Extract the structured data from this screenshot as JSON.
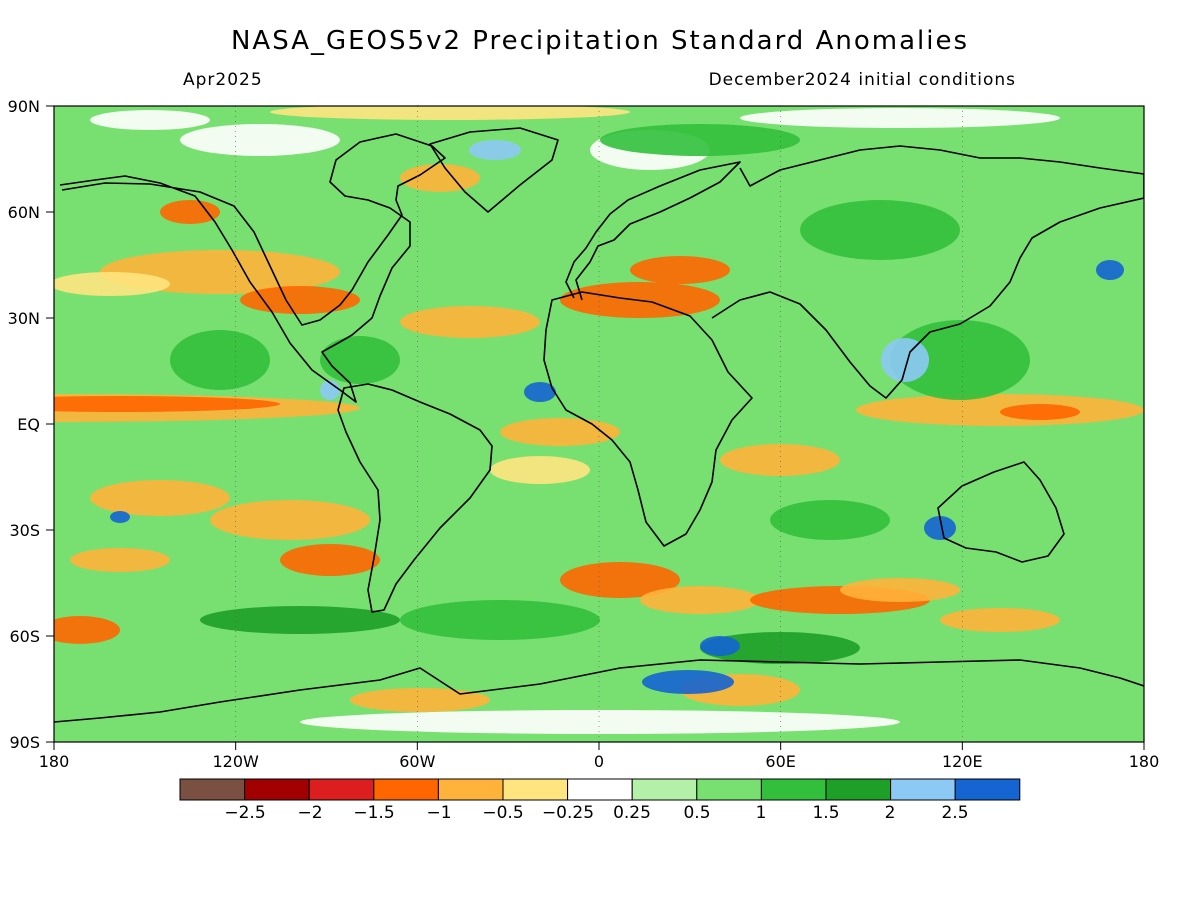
{
  "map": {
    "title": "NASA_GEOS5v2 Precipitation Standard Anomalies",
    "valid_month": "Apr2025",
    "initial_conditions": "December2024 initial conditions",
    "lat_labels": [
      "90N",
      "60N",
      "30N",
      "EQ",
      "30S",
      "60S",
      "90S"
    ],
    "lon_labels": [
      "180",
      "120W",
      "60W",
      "0",
      "60E",
      "120E",
      "180"
    ],
    "colorbar": {
      "labels": [
        "−2.5",
        "−2",
        "−1.5",
        "−1",
        "−0.5",
        "−0.25",
        "0.25",
        "0.5",
        "1",
        "1.5",
        "2",
        "2.5"
      ],
      "colors": [
        "#7a5042",
        "#a00000",
        "#dc1e1e",
        "#ff6600",
        "#ffb33a",
        "#ffe480",
        "#ffffff",
        "#b4f0a8",
        "#78e070",
        "#32c03c",
        "#1ea028",
        "#8ccaf5",
        "#1464d2"
      ]
    }
  }
}
